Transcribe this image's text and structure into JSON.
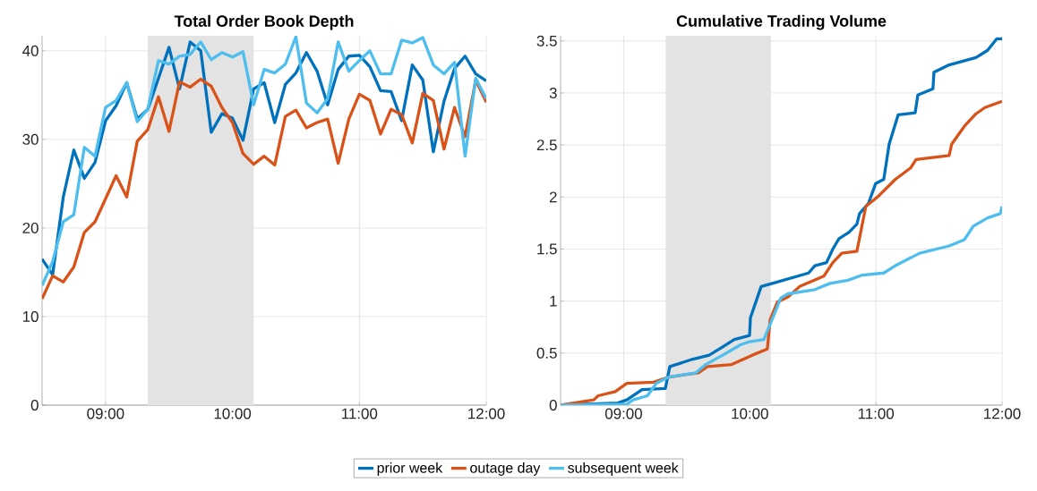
{
  "chart_data": [
    {
      "type": "line",
      "title": "Total Order Book Depth",
      "legend": "bottom",
      "grid": true,
      "x": [
        8.5,
        8.583,
        8.667,
        8.75,
        8.833,
        8.917,
        9.0,
        9.083,
        9.167,
        9.25,
        9.333,
        9.417,
        9.5,
        9.583,
        9.667,
        9.75,
        9.833,
        9.917,
        10.0,
        10.083,
        10.167,
        10.25,
        10.333,
        10.417,
        10.5,
        10.583,
        10.667,
        10.75,
        10.833,
        10.917,
        11.0,
        11.083,
        11.167,
        11.25,
        11.333,
        11.417,
        11.5,
        11.583,
        11.667,
        11.75,
        11.833,
        11.917,
        12.0
      ],
      "xlim": [
        8.5,
        12.0
      ],
      "xticks": [
        {
          "value": 9,
          "label": "09:00"
        },
        {
          "value": 10,
          "label": "10:00"
        },
        {
          "value": 11,
          "label": "11:00"
        },
        {
          "value": 12,
          "label": "12:00"
        }
      ],
      "ylim": [
        0,
        41.7
      ],
      "yticks": [
        0,
        10,
        20,
        30,
        40
      ],
      "bands": [
        {
          "axis": "x",
          "from": 9.333,
          "to": 10.167,
          "color": "#e3e3e3"
        }
      ],
      "series": [
        {
          "name": "prior week",
          "color": "#0072bd",
          "values": [
            16.5,
            14.7,
            23.5,
            28.8,
            25.6,
            27.4,
            32.1,
            33.8,
            36.4,
            32.3,
            33.4,
            36.9,
            40.4,
            35.7,
            41.0,
            40.0,
            30.8,
            32.9,
            32.4,
            29.9,
            35.7,
            36.4,
            31.9,
            36.2,
            37.5,
            39.8,
            37.7,
            33.9,
            37.9,
            39.4,
            39.5,
            38.2,
            35.5,
            35.4,
            32.1,
            38.4,
            36.7,
            28.6,
            34.3,
            38.0,
            39.4,
            37.4,
            36.6
          ]
        },
        {
          "name": "outage day",
          "color": "#d95319",
          "values": [
            12.0,
            14.6,
            13.9,
            15.6,
            19.5,
            20.7,
            23.3,
            25.9,
            23.5,
            29.8,
            31.1,
            34.8,
            30.9,
            36.5,
            35.9,
            36.8,
            36.0,
            33.6,
            31.9,
            28.4,
            27.2,
            28.1,
            27.1,
            32.6,
            33.3,
            31.3,
            31.9,
            32.3,
            27.3,
            32.3,
            35.1,
            34.4,
            30.6,
            33.4,
            32.8,
            29.6,
            35.2,
            34.4,
            28.9,
            33.6,
            30.3,
            36.7,
            34.2
          ]
        },
        {
          "name": "subsequent week",
          "color": "#4dbeee",
          "values": [
            13.5,
            16.2,
            20.7,
            21.5,
            29.1,
            28.1,
            33.6,
            34.4,
            36.4,
            32.0,
            33.4,
            38.9,
            38.5,
            39.4,
            39.6,
            41.0,
            39.0,
            39.8,
            39.3,
            39.9,
            33.9,
            37.9,
            37.5,
            38.5,
            41.6,
            34.1,
            33.0,
            34.6,
            41.0,
            37.7,
            38.9,
            40.0,
            37.4,
            37.4,
            41.2,
            40.9,
            41.5,
            38.4,
            37.4,
            38.7,
            28.1,
            36.9,
            34.6
          ]
        }
      ]
    },
    {
      "type": "line",
      "title": "Cumulative Trading Volume",
      "grid": true,
      "xlim": [
        8.5,
        12.0
      ],
      "xticks": [
        {
          "value": 9,
          "label": "09:00"
        },
        {
          "value": 10,
          "label": "10:00"
        },
        {
          "value": 11,
          "label": "11:00"
        },
        {
          "value": 12,
          "label": "12:00"
        }
      ],
      "ylim": [
        0,
        3.55
      ],
      "yticks": [
        0,
        0.5,
        1,
        1.5,
        2,
        2.5,
        3,
        3.5
      ],
      "bands": [
        {
          "axis": "x",
          "from": 9.333,
          "to": 10.167,
          "color": "#e3e3e3"
        }
      ],
      "series": [
        {
          "color": "#0072bd",
          "x": [
            8.5,
            8.954,
            9.025,
            9.146,
            9.33,
            9.366,
            9.543,
            9.678,
            9.785,
            9.877,
            9.998,
            10.005,
            10.09,
            10.21,
            10.466,
            10.516,
            10.608,
            10.658,
            10.707,
            10.785,
            10.849,
            10.87,
            10.941,
            10.998,
            11.062,
            11.105,
            11.176,
            11.311,
            11.332,
            11.452,
            11.46,
            11.58,
            11.793,
            11.885,
            11.957,
            12.0
          ],
          "values": [
            0,
            0.02,
            0.05,
            0.15,
            0.16,
            0.37,
            0.44,
            0.48,
            0.56,
            0.63,
            0.67,
            0.84,
            1.14,
            1.18,
            1.27,
            1.34,
            1.37,
            1.5,
            1.6,
            1.66,
            1.74,
            1.84,
            1.94,
            2.13,
            2.17,
            2.51,
            2.79,
            2.81,
            2.98,
            3.04,
            3.2,
            3.27,
            3.34,
            3.41,
            3.52,
            3.52
          ]
        },
        {
          "color": "#d95319",
          "x": [
            8.5,
            8.763,
            8.798,
            8.933,
            9.025,
            9.238,
            9.359,
            9.593,
            9.664,
            9.856,
            9.948,
            10.019,
            10.139,
            10.161,
            10.218,
            10.303,
            10.395,
            10.587,
            10.658,
            10.729,
            10.849,
            10.92,
            11.012,
            11.154,
            11.275,
            11.318,
            11.58,
            11.601,
            11.701,
            11.793,
            11.864,
            12.0
          ],
          "values": [
            0,
            0.05,
            0.09,
            0.13,
            0.21,
            0.22,
            0.27,
            0.31,
            0.37,
            0.39,
            0.44,
            0.48,
            0.54,
            0.82,
            0.99,
            1.04,
            1.14,
            1.24,
            1.37,
            1.46,
            1.48,
            1.91,
            2.0,
            2.17,
            2.28,
            2.36,
            2.4,
            2.51,
            2.68,
            2.8,
            2.86,
            2.92
          ]
        },
        {
          "color": "#4dbeee",
          "x": [
            8.5,
            9.025,
            9.075,
            9.188,
            9.259,
            9.359,
            9.572,
            9.65,
            9.785,
            9.927,
            9.998,
            10.111,
            10.182,
            10.246,
            10.303,
            10.516,
            10.636,
            10.778,
            10.892,
            11.062,
            11.154,
            11.346,
            11.58,
            11.701,
            11.772,
            11.885,
            11.985,
            12.0
          ],
          "values": [
            0,
            0.01,
            0.05,
            0.09,
            0.21,
            0.27,
            0.31,
            0.39,
            0.48,
            0.58,
            0.61,
            0.63,
            0.84,
            1.03,
            1.07,
            1.11,
            1.17,
            1.2,
            1.25,
            1.27,
            1.34,
            1.46,
            1.53,
            1.59,
            1.72,
            1.8,
            1.84,
            1.91
          ]
        }
      ]
    }
  ]
}
